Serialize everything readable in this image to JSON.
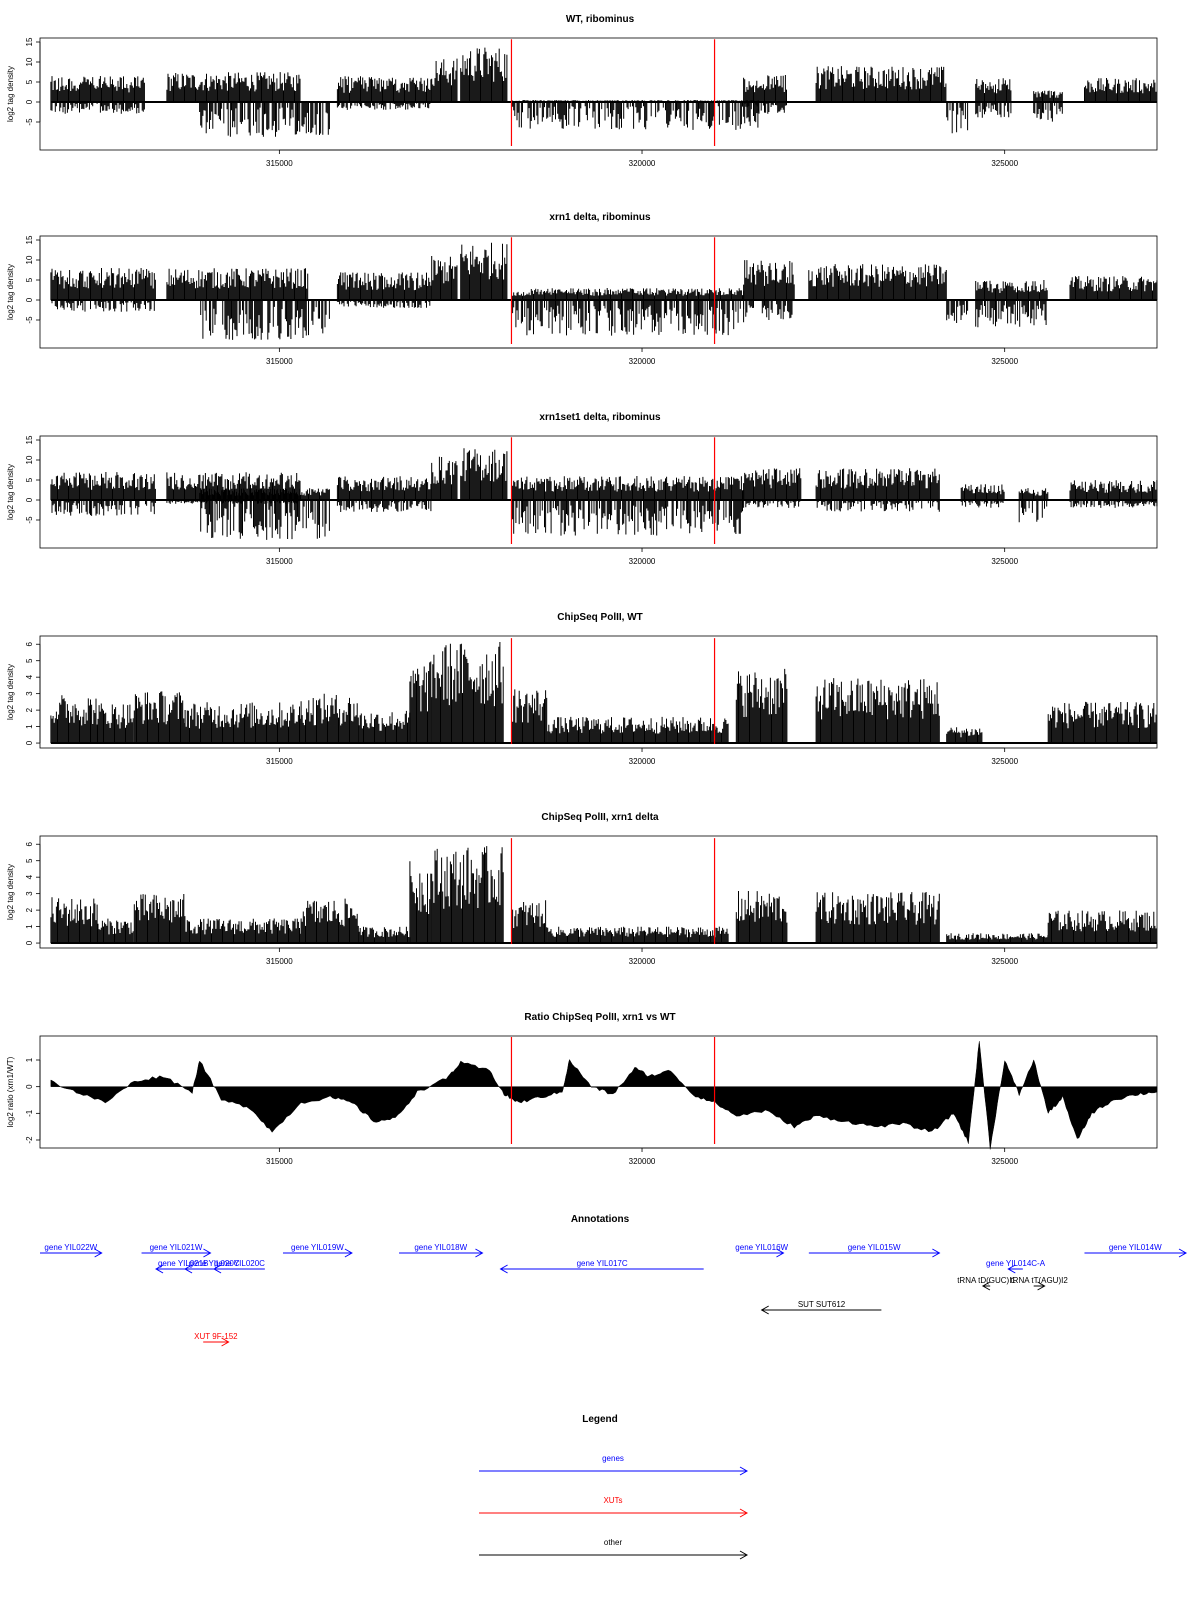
{
  "chart_data": [
    {
      "type": "bar",
      "title": "WT, ribominus",
      "ylabel": "log2 tag density",
      "xlim": [
        311700,
        327100
      ],
      "ylim": [
        -12,
        16
      ],
      "yticks": [
        -5,
        0,
        5,
        10,
        15
      ],
      "xticks": [
        315000,
        320000,
        325000
      ],
      "markers": [
        318200,
        321000
      ],
      "segments": [
        {
          "x": [
            311850,
            313150
          ],
          "ymax": 6.5,
          "ymin": -3
        },
        {
          "x": [
            313450,
            315300
          ],
          "ymax": 7.5,
          "ymin": 0
        },
        {
          "x": [
            313900,
            315700
          ],
          "ymax": 0,
          "ymin": -9
        },
        {
          "x": [
            315800,
            317100
          ],
          "ymax": 6.5,
          "ymin": -2
        },
        {
          "x": [
            317100,
            317450
          ],
          "ymax": 11,
          "ymin": 0
        },
        {
          "x": [
            317500,
            318150
          ],
          "ymax": 14,
          "ymin": 0
        },
        {
          "x": [
            318200,
            321600
          ],
          "ymax": 0.5,
          "ymin": -7
        },
        {
          "x": [
            321400,
            322000
          ],
          "ymax": 7,
          "ymin": -3
        },
        {
          "x": [
            322400,
            324200
          ],
          "ymax": 9,
          "ymin": 0
        },
        {
          "x": [
            324200,
            324500
          ],
          "ymax": 0,
          "ymin": -8
        },
        {
          "x": [
            324600,
            325100
          ],
          "ymax": 6,
          "ymin": -4
        },
        {
          "x": [
            325400,
            325800
          ],
          "ymax": 3,
          "ymin": -5
        },
        {
          "x": [
            326100,
            327100
          ],
          "ymax": 6,
          "ymin": 0
        }
      ]
    },
    {
      "type": "bar",
      "title": "xrn1 delta, ribominus",
      "ylabel": "log2 tag density",
      "xlim": [
        311700,
        327100
      ],
      "ylim": [
        -12,
        16
      ],
      "yticks": [
        -5,
        0,
        5,
        10,
        15
      ],
      "xticks": [
        315000,
        320000,
        325000
      ],
      "markers": [
        318200,
        321000
      ],
      "segments": [
        {
          "x": [
            311850,
            313300
          ],
          "ymax": 8,
          "ymin": -3
        },
        {
          "x": [
            313450,
            315400
          ],
          "ymax": 8,
          "ymin": 0
        },
        {
          "x": [
            313900,
            315700
          ],
          "ymax": 0,
          "ymin": -10
        },
        {
          "x": [
            315800,
            317100
          ],
          "ymax": 7,
          "ymin": -2
        },
        {
          "x": [
            317100,
            317450
          ],
          "ymax": 11,
          "ymin": 0
        },
        {
          "x": [
            317500,
            318150
          ],
          "ymax": 14.5,
          "ymin": 0
        },
        {
          "x": [
            318200,
            321400
          ],
          "ymax": 3,
          "ymin": -9
        },
        {
          "x": [
            321400,
            322100
          ],
          "ymax": 10,
          "ymin": -5
        },
        {
          "x": [
            322300,
            324200
          ],
          "ymax": 9,
          "ymin": 0
        },
        {
          "x": [
            324200,
            324500
          ],
          "ymax": 0,
          "ymin": -6
        },
        {
          "x": [
            324600,
            325600
          ],
          "ymax": 5,
          "ymin": -7
        },
        {
          "x": [
            325900,
            327100
          ],
          "ymax": 6,
          "ymin": 0
        }
      ]
    },
    {
      "type": "bar",
      "title": "xrn1set1 delta, ribominus",
      "ylabel": "log2 tag density",
      "xlim": [
        311700,
        327100
      ],
      "ylim": [
        -12,
        16
      ],
      "yticks": [
        -5,
        0,
        5,
        10,
        15
      ],
      "xticks": [
        315000,
        320000,
        325000
      ],
      "markers": [
        318200,
        321000
      ],
      "segments": [
        {
          "x": [
            311850,
            313300
          ],
          "ymax": 7,
          "ymin": -4
        },
        {
          "x": [
            313450,
            315300
          ],
          "ymax": 7,
          "ymin": -1
        },
        {
          "x": [
            313900,
            315700
          ],
          "ymax": 3,
          "ymin": -10
        },
        {
          "x": [
            315800,
            317100
          ],
          "ymax": 6,
          "ymin": -3
        },
        {
          "x": [
            317100,
            317450
          ],
          "ymax": 11,
          "ymin": 0
        },
        {
          "x": [
            317500,
            318150
          ],
          "ymax": 13,
          "ymin": 0
        },
        {
          "x": [
            318200,
            321400
          ],
          "ymax": 6,
          "ymin": -9
        },
        {
          "x": [
            321400,
            322200
          ],
          "ymax": 8,
          "ymin": -2
        },
        {
          "x": [
            322400,
            324100
          ],
          "ymax": 8,
          "ymin": -3
        },
        {
          "x": [
            324400,
            325000
          ],
          "ymax": 4,
          "ymin": -2
        },
        {
          "x": [
            325200,
            325600
          ],
          "ymax": 3,
          "ymin": -6
        },
        {
          "x": [
            325900,
            327100
          ],
          "ymax": 5,
          "ymin": -2
        }
      ]
    },
    {
      "type": "bar",
      "title": "ChipSeq PolII, WT",
      "ylabel": "log2 tag density",
      "xlim": [
        311700,
        327100
      ],
      "ylim": [
        -0.3,
        6.5
      ],
      "yticks": [
        0,
        1,
        2,
        3,
        4,
        5,
        6
      ],
      "xticks": [
        315000,
        320000,
        325000
      ],
      "markers": [
        318200,
        321000
      ],
      "segments": [
        {
          "x": [
            311850,
            312500
          ],
          "ymax": 3,
          "ymin": 0
        },
        {
          "x": [
            312500,
            313000
          ],
          "ymax": 2.5,
          "ymin": 0
        },
        {
          "x": [
            313000,
            313700
          ],
          "ymax": 3.2,
          "ymin": 0
        },
        {
          "x": [
            313700,
            315300
          ],
          "ymax": 2.5,
          "ymin": 0
        },
        {
          "x": [
            315300,
            316100
          ],
          "ymax": 3,
          "ymin": 0
        },
        {
          "x": [
            316100,
            316800
          ],
          "ymax": 2,
          "ymin": 0
        },
        {
          "x": [
            316800,
            317100
          ],
          "ymax": 5,
          "ymin": 0
        },
        {
          "x": [
            317100,
            318100
          ],
          "ymax": 6.2,
          "ymin": 0
        },
        {
          "x": [
            318200,
            318700
          ],
          "ymax": 3.4,
          "ymin": 0
        },
        {
          "x": [
            318700,
            321200
          ],
          "ymax": 1.6,
          "ymin": 0
        },
        {
          "x": [
            321300,
            322000
          ],
          "ymax": 4.5,
          "ymin": 0
        },
        {
          "x": [
            322400,
            324100
          ],
          "ymax": 4,
          "ymin": 0
        },
        {
          "x": [
            324200,
            324700
          ],
          "ymax": 1,
          "ymin": 0
        },
        {
          "x": [
            325600,
            327100
          ],
          "ymax": 2.5,
          "ymin": 0
        }
      ]
    },
    {
      "type": "bar",
      "title": "ChipSeq PolII, xrn1 delta",
      "ylabel": "log2 tag density",
      "xlim": [
        311700,
        327100
      ],
      "ylim": [
        -0.3,
        6.5
      ],
      "yticks": [
        0,
        1,
        2,
        3,
        4,
        5,
        6
      ],
      "xticks": [
        315000,
        320000,
        325000
      ],
      "markers": [
        318200,
        321000
      ],
      "segments": [
        {
          "x": [
            311850,
            312500
          ],
          "ymax": 2.8,
          "ymin": 0
        },
        {
          "x": [
            312500,
            313000
          ],
          "ymax": 1.5,
          "ymin": 0
        },
        {
          "x": [
            313000,
            313700
          ],
          "ymax": 3,
          "ymin": 0
        },
        {
          "x": [
            313700,
            315300
          ],
          "ymax": 1.5,
          "ymin": 0
        },
        {
          "x": [
            315300,
            316100
          ],
          "ymax": 2.7,
          "ymin": 0
        },
        {
          "x": [
            316100,
            316800
          ],
          "ymax": 1,
          "ymin": 0
        },
        {
          "x": [
            316800,
            317100
          ],
          "ymax": 5,
          "ymin": 0
        },
        {
          "x": [
            317100,
            318100
          ],
          "ymax": 5.9,
          "ymin": 0
        },
        {
          "x": [
            318200,
            318700
          ],
          "ymax": 2.6,
          "ymin": 0
        },
        {
          "x": [
            318700,
            321200
          ],
          "ymax": 1,
          "ymin": 0
        },
        {
          "x": [
            321300,
            322000
          ],
          "ymax": 3.2,
          "ymin": 0
        },
        {
          "x": [
            322400,
            324100
          ],
          "ymax": 3.1,
          "ymin": 0
        },
        {
          "x": [
            324200,
            325600
          ],
          "ymax": 0.6,
          "ymin": 0
        },
        {
          "x": [
            325600,
            327100
          ],
          "ymax": 2,
          "ymin": 0
        }
      ]
    },
    {
      "type": "area",
      "title": "Ratio ChipSeq PolII, xrn1 vs WT",
      "ylabel": "log2 ratio (xrn1/WT)",
      "xlim": [
        311700,
        327100
      ],
      "ylim": [
        -2.3,
        1.9
      ],
      "yticks": [
        -2,
        -1,
        0,
        1
      ],
      "xticks": [
        315000,
        320000,
        325000
      ],
      "markers": [
        318200,
        321000
      ],
      "x": [
        311850,
        312200,
        312600,
        313000,
        313400,
        313800,
        313900,
        314200,
        314600,
        314900,
        315300,
        315700,
        316000,
        316300,
        316600,
        316900,
        317300,
        317500,
        317900,
        318100,
        318300,
        318600,
        318900,
        319000,
        319300,
        319600,
        319900,
        320100,
        320400,
        320700,
        321000,
        321300,
        321700,
        322100,
        322400,
        322800,
        323200,
        323600,
        324000,
        324300,
        324500,
        324650,
        324800,
        325000,
        325200,
        325400,
        325600,
        325800,
        326000,
        326200,
        326500,
        326800,
        327100
      ],
      "y": [
        0.2,
        -0.2,
        -0.6,
        0.2,
        0.4,
        -0.2,
        1.0,
        -0.5,
        -0.8,
        -1.7,
        -0.6,
        -0.4,
        -0.6,
        -1.3,
        -1.2,
        -0.2,
        0.3,
        0.9,
        0.6,
        -0.3,
        -0.6,
        -0.4,
        -0.2,
        1.0,
        0.0,
        -0.3,
        0.7,
        0.4,
        0.6,
        -0.3,
        -0.6,
        -1.1,
        -0.9,
        -1.5,
        -1.1,
        -1.3,
        -1.5,
        -1.4,
        -1.7,
        -1.0,
        -2.1,
        1.7,
        -2.3,
        1.0,
        -0.3,
        1.0,
        -1.0,
        -0.4,
        -2.0,
        -1.0,
        -0.5,
        -0.3,
        -0.2
      ]
    }
  ],
  "annotations": {
    "title": "Annotations",
    "features": [
      {
        "label": "gene YIL022W",
        "start": 311700,
        "end": 312550,
        "row": 0,
        "strand": "+",
        "kind": "gene"
      },
      {
        "label": "gene YIL021W",
        "start": 313100,
        "end": 314050,
        "row": 0,
        "strand": "+",
        "kind": "gene"
      },
      {
        "label": "gene YIL021B",
        "start": 313300,
        "end": 314050,
        "row": 1,
        "strand": "-",
        "kind": "gene"
      },
      {
        "label": "gene YIL020C",
        "start": 313700,
        "end": 314500,
        "row": 1,
        "strand": "-",
        "kind": "gene"
      },
      {
        "label": "gene YIL020C",
        "start": 314100,
        "end": 314800,
        "row": 1,
        "strand": "-",
        "kind": "gene"
      },
      {
        "label": "gene YIL019W",
        "start": 315050,
        "end": 316000,
        "row": 0,
        "strand": "+",
        "kind": "gene"
      },
      {
        "label": "gene YIL018W",
        "start": 316650,
        "end": 317800,
        "row": 0,
        "strand": "+",
        "kind": "gene"
      },
      {
        "label": "gene YIL017C",
        "start": 318050,
        "end": 320850,
        "row": 1,
        "strand": "-",
        "kind": "gene"
      },
      {
        "label": "gene YIL016W",
        "start": 321350,
        "end": 321950,
        "row": 0,
        "strand": "+",
        "kind": "gene"
      },
      {
        "label": "gene YIL015W",
        "start": 322300,
        "end": 324100,
        "row": 0,
        "strand": "+",
        "kind": "gene"
      },
      {
        "label": "tRNA tD(GUC)I1",
        "start": 324700,
        "end": 324800,
        "row": 2,
        "strand": "-",
        "kind": "other"
      },
      {
        "label": "gene YIL014C-A",
        "start": 325050,
        "end": 325250,
        "row": 1,
        "strand": "-",
        "kind": "gene"
      },
      {
        "label": "tRNA tT(AGU)I2",
        "start": 325400,
        "end": 325550,
        "row": 2,
        "strand": "+",
        "kind": "other"
      },
      {
        "label": "gene YIL014W",
        "start": 326100,
        "end": 327500,
        "row": 0,
        "strand": "+",
        "kind": "gene"
      },
      {
        "label": "SUT SUT612",
        "start": 321650,
        "end": 323300,
        "row": 3,
        "strand": "-",
        "kind": "other"
      },
      {
        "label": "XUT 9F-152",
        "start": 313950,
        "end": 314300,
        "row": 4,
        "strand": "+",
        "kind": "xut"
      }
    ]
  },
  "legend": {
    "title": "Legend",
    "items": [
      {
        "label": "genes",
        "color": "#0000ff"
      },
      {
        "label": "XUTs",
        "color": "#ff0000"
      },
      {
        "label": "other",
        "color": "#000000"
      }
    ]
  },
  "colors": {
    "data": "#000000",
    "marker": "#ff0000",
    "gene": "#0000ff",
    "xut": "#ff0000",
    "other": "#000000"
  }
}
